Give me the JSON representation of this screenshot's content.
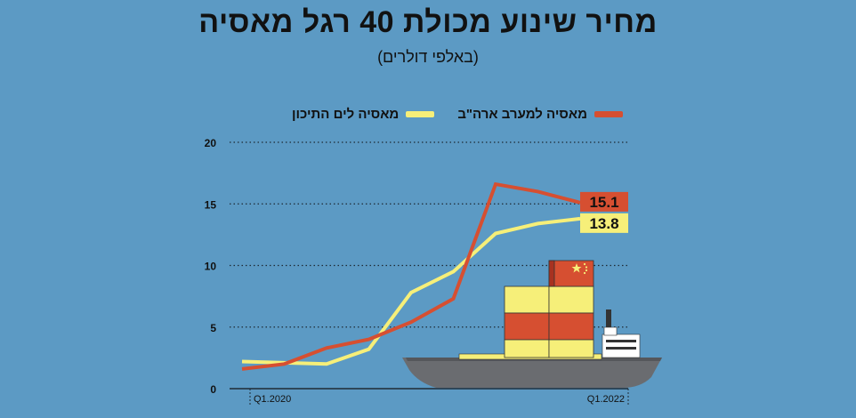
{
  "title": "מחיר שינוע מכולת 40 רגל מאסיה",
  "subtitle": "(באלפי דולרים)",
  "colors": {
    "background": "#5c9ac4",
    "asia_us_east": "#d64f31",
    "asia_med": "#f6ef79",
    "grid": "#1e2a35"
  },
  "chart_data": {
    "type": "line",
    "title": "מחיר שינוע מכולת 40 רגל מאסיה",
    "subtitle": "(באלפי דולרים)",
    "xlabel": "",
    "ylabel": "",
    "ylim": [
      0,
      20
    ],
    "yticks": [
      "0",
      "5",
      "10",
      "15",
      "20"
    ],
    "x_tick_labels": [
      "Q1.2020",
      "Q1.2022"
    ],
    "x": [
      0,
      1,
      2,
      3,
      4,
      5,
      6,
      7,
      8,
      9
    ],
    "grid": true,
    "legend_position": "top",
    "series": [
      {
        "name": "מאסיה למערב ארה\"ב",
        "color": "#d64f31",
        "values": [
          1.6,
          2.0,
          3.3,
          4.0,
          5.4,
          7.3,
          16.6,
          16.0,
          15.1
        ],
        "x": [
          0,
          1,
          2,
          3,
          4,
          5,
          6,
          7,
          8
        ],
        "end_label": "15.1"
      },
      {
        "name": "מאסיה לים התיכון",
        "color": "#f6ef79",
        "values": [
          2.2,
          2.1,
          2.0,
          3.2,
          7.8,
          9.5,
          12.6,
          13.4,
          13.8
        ],
        "x": [
          0,
          1,
          2,
          3,
          4,
          5,
          6,
          7,
          8
        ],
        "end_label": "13.8"
      }
    ]
  },
  "illustration": {
    "name": "container-ship",
    "colors": {
      "hull": "#6a6c70",
      "hull_dark": "#4a4c50",
      "container_yellow": "#f6ef79",
      "container_red": "#d64f31",
      "bridge": "#ffffff"
    }
  }
}
